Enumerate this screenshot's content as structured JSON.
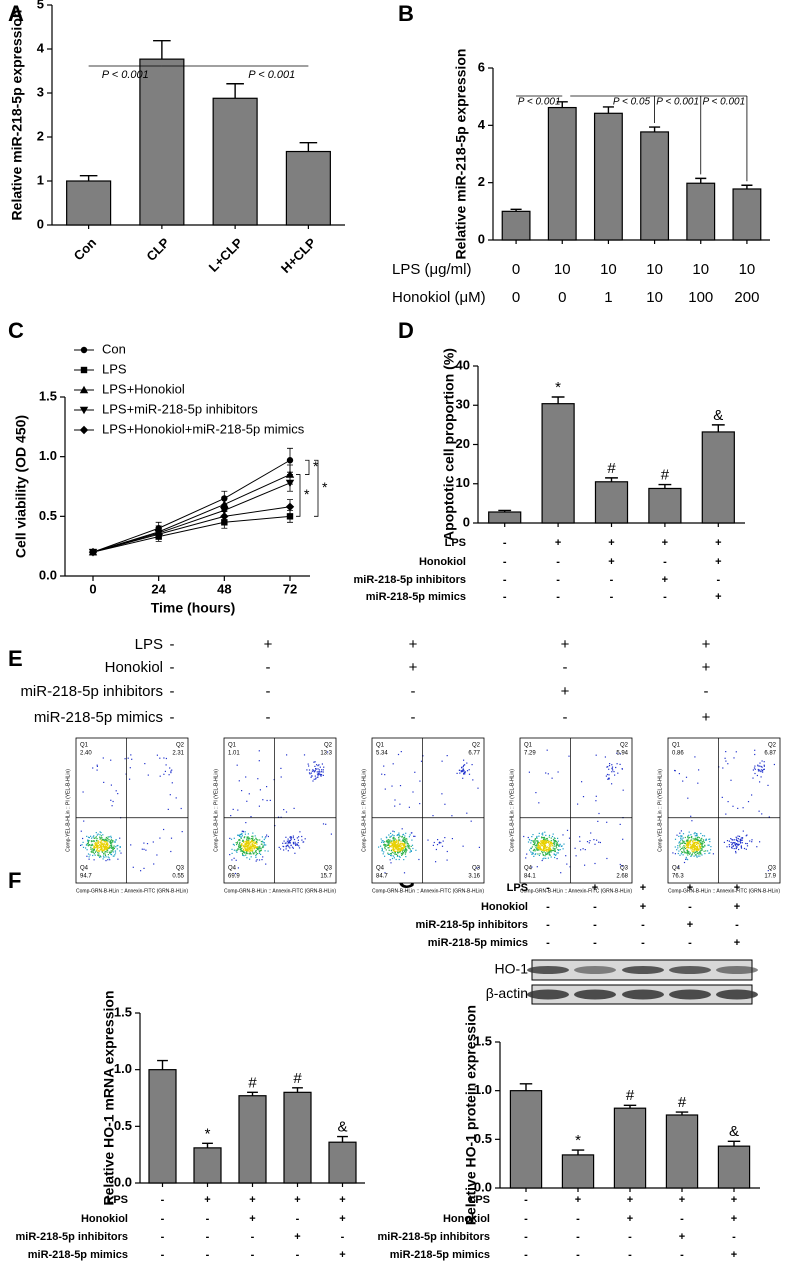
{
  "chart_data": [
    {
      "type": "bar",
      "panel": "A",
      "ylabel": "Relative miR-218-5p expression",
      "categories": [
        "Con",
        "CLP",
        "L+CLP",
        "H+CLP"
      ],
      "values": [
        1,
        3.77,
        2.88,
        1.67
      ],
      "errors": [
        0.12,
        0.42,
        0.33,
        0.2
      ],
      "color": "#7f7f7f",
      "ylim": [
        0,
        5
      ],
      "yticks": [
        0,
        1,
        2,
        3,
        4,
        5
      ],
      "annotations": [
        "P < 0.001",
        "P < 0.001"
      ]
    },
    {
      "type": "bar",
      "panel": "B",
      "ylabel": "Relative miR-218-5p expression",
      "values": [
        1,
        4.62,
        4.42,
        3.77,
        1.98,
        1.78
      ],
      "errors": [
        0.07,
        0.2,
        0.22,
        0.17,
        0.17,
        0.13
      ],
      "color": "#7f7f7f",
      "ylim": [
        0,
        6
      ],
      "yticks": [
        0,
        2,
        4,
        6
      ],
      "conditions": [
        {
          "name": "LPS (μg/ml)",
          "values": [
            "0",
            "10",
            "10",
            "10",
            "10",
            "10"
          ]
        },
        {
          "name": "Honokiol (μM)",
          "values": [
            "0",
            "0",
            "1",
            "10",
            "100",
            "200"
          ]
        }
      ],
      "annotations": [
        "P < 0.001",
        "P < 0.05",
        "P < 0.001",
        "P < 0.001"
      ]
    },
    {
      "type": "line",
      "panel": "C",
      "xlabel": "Time (hours)",
      "ylabel": "Cell viability (OD 450)",
      "x": [
        0,
        24,
        48,
        72
      ],
      "xlim": [
        0,
        72
      ],
      "xticks": [
        0,
        24,
        48,
        72
      ],
      "ylim": [
        0,
        1.5
      ],
      "yticks": [
        {
          "value": 0,
          "label": "0.0"
        },
        {
          "value": 0.5,
          "label": "0.5"
        },
        {
          "value": 1,
          "label": "1.0"
        },
        {
          "value": 1.5,
          "label": "1.5"
        }
      ],
      "series": [
        {
          "name": "Con",
          "marker": "circle",
          "color": "#000000",
          "values": [
            0.2,
            0.4,
            0.65,
            0.97
          ],
          "errors": [
            0.02,
            0.05,
            0.06,
            0.1
          ]
        },
        {
          "name": "LPS",
          "marker": "square",
          "color": "#000000",
          "values": [
            0.2,
            0.33,
            0.45,
            0.5
          ],
          "errors": [
            0.02,
            0.04,
            0.05,
            0.05
          ]
        },
        {
          "name": "LPS+Honokiol",
          "marker": "triangle",
          "color": "#000000",
          "values": [
            0.2,
            0.37,
            0.6,
            0.85
          ],
          "errors": [
            0.02,
            0.05,
            0.06,
            0.08
          ]
        },
        {
          "name": "LPS+miR-218-5p inhibitors",
          "marker": "triangle-down",
          "color": "#000000",
          "values": [
            0.2,
            0.36,
            0.55,
            0.78
          ],
          "errors": [
            0.02,
            0.04,
            0.05,
            0.07
          ]
        },
        {
          "name": "LPS+Honokiol+miR-218-5p mimics",
          "marker": "diamond",
          "color": "#000000",
          "values": [
            0.2,
            0.35,
            0.5,
            0.58
          ],
          "errors": [
            0.02,
            0.04,
            0.05,
            0.06
          ]
        }
      ],
      "annotations": [
        "*",
        "*",
        "*"
      ]
    },
    {
      "type": "bar",
      "panel": "D",
      "ylabel": "Apoptotic cell proportion (%)",
      "values": [
        2.8,
        30.4,
        10.5,
        8.8,
        23.2
      ],
      "errors": [
        0.4,
        1.7,
        1,
        1,
        1.8
      ],
      "sig": [
        null,
        "*",
        "#",
        "#",
        "&"
      ],
      "color": "#7f7f7f",
      "ylim": [
        0,
        40
      ],
      "yticks": [
        0,
        10,
        20,
        30,
        40
      ],
      "conditions": [
        {
          "name": "LPS",
          "values": [
            "-",
            "+",
            "+",
            "+",
            "+"
          ]
        },
        {
          "name": "Honokiol",
          "values": [
            "-",
            "-",
            "+",
            "-",
            "+"
          ]
        },
        {
          "name": "miR-218-5p inhibitors",
          "values": [
            "-",
            "-",
            "-",
            "+",
            "-"
          ]
        },
        {
          "name": "miR-218-5p mimics",
          "values": [
            "-",
            "-",
            "-",
            "-",
            "+"
          ]
        }
      ]
    },
    {
      "type": "flow",
      "panel": "E",
      "xlabel": "Comp-GRN-B-HLin :: Annexin-FITC (GRN-B-HLin)",
      "ylabel": "Comp-YEL-B-HLin :: PI (YEL-B-HLin)",
      "quadrants": [
        "Q1",
        "Q2",
        "Q3",
        "Q4"
      ],
      "plots": [
        [
          "2.40",
          "2.31",
          "0.55",
          "94.7"
        ],
        [
          "1.01",
          "13.3",
          "15.7",
          "69.9"
        ],
        [
          "5.34",
          "6.77",
          "3.16",
          "84.7"
        ],
        [
          "7.29",
          "5.94",
          "2.68",
          "84.1"
        ],
        [
          "0.86",
          "6.87",
          "17.9",
          "76.3"
        ]
      ],
      "conditions": [
        {
          "name": "LPS",
          "values": [
            "-",
            "+",
            "+",
            "+",
            "+"
          ]
        },
        {
          "name": "Honokiol",
          "values": [
            "-",
            "-",
            "+",
            "-",
            "+"
          ]
        },
        {
          "name": "miR-218-5p inhibitors",
          "values": [
            "-",
            "-",
            "-",
            "+",
            "-"
          ]
        },
        {
          "name": "miR-218-5p mimics",
          "values": [
            "-",
            "-",
            "-",
            "-",
            "+"
          ]
        }
      ]
    },
    {
      "type": "bar",
      "panel": "F",
      "ylabel": "Relative HO-1 mRNA expression",
      "values": [
        1,
        0.31,
        0.77,
        0.8,
        0.36
      ],
      "errors": [
        0.08,
        0.04,
        0.03,
        0.04,
        0.05
      ],
      "sig": [
        null,
        "*",
        "#",
        "#",
        "&"
      ],
      "color": "#7f7f7f",
      "ylim": [
        0,
        1.5
      ],
      "yticks": [
        {
          "value": 0,
          "label": "0.0"
        },
        {
          "value": 0.5,
          "label": "0.5"
        },
        {
          "value": 1,
          "label": "1.0"
        },
        {
          "value": 1.5,
          "label": "1.5"
        }
      ],
      "conditions": [
        {
          "name": "LPS",
          "values": [
            "-",
            "+",
            "+",
            "+",
            "+"
          ]
        },
        {
          "name": "Honokiol",
          "values": [
            "-",
            "-",
            "+",
            "-",
            "+"
          ]
        },
        {
          "name": "miR-218-5p inhibitors",
          "values": [
            "-",
            "-",
            "-",
            "+",
            "-"
          ]
        },
        {
          "name": "miR-218-5p mimics",
          "values": [
            "-",
            "-",
            "-",
            "-",
            "+"
          ]
        }
      ]
    },
    {
      "type": "bar",
      "panel": "G",
      "ylabel": "Relative HO-1 protein expression",
      "values": [
        1,
        0.34,
        0.82,
        0.75,
        0.43
      ],
      "errors": [
        0.07,
        0.05,
        0.03,
        0.03,
        0.05
      ],
      "sig": [
        null,
        "*",
        "#",
        "#",
        "&"
      ],
      "color": "#7f7f7f",
      "ylim": [
        0,
        1.5
      ],
      "yticks": [
        {
          "value": 0,
          "label": "0.0"
        },
        {
          "value": 0.5,
          "label": "0.5"
        },
        {
          "value": 1,
          "label": "1.0"
        },
        {
          "value": 1.5,
          "label": "1.5"
        }
      ],
      "blot_labels": [
        "HO-1",
        "β-actin"
      ],
      "conditions": [
        {
          "name": "LPS",
          "values": [
            "-",
            "+",
            "+",
            "+",
            "+"
          ]
        },
        {
          "name": "Honokiol",
          "values": [
            "-",
            "-",
            "+",
            "-",
            "+"
          ]
        },
        {
          "name": "miR-218-5p inhibitors",
          "values": [
            "-",
            "-",
            "-",
            "+",
            "-"
          ]
        },
        {
          "name": "miR-218-5p mimics",
          "values": [
            "-",
            "-",
            "-",
            "-",
            "+"
          ]
        }
      ]
    }
  ]
}
